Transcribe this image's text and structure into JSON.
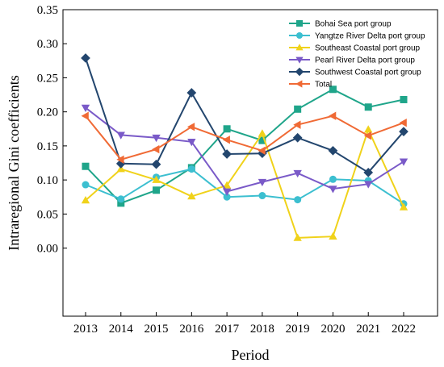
{
  "chart_data": {
    "type": "line",
    "xlabel": "Period",
    "ylabel": "Intraregional Gini coefficients",
    "ylim": [
      -0.1,
      0.35
    ],
    "yticks": [
      0.0,
      0.05,
      0.1,
      0.15,
      0.2,
      0.25,
      0.3,
      0.35
    ],
    "ytick_labels": [
      "0.00",
      "0.05",
      "0.10",
      "0.15",
      "0.20",
      "0.25",
      "0.30",
      "0.35"
    ],
    "categories": [
      "2013",
      "2014",
      "2015",
      "2016",
      "2017",
      "2018",
      "2019",
      "2020",
      "2021",
      "2022"
    ],
    "legend_position": "top-right",
    "grid": false,
    "series": [
      {
        "name": "Bohai Sea port group",
        "color": "#1fa58a",
        "marker": "square",
        "values": [
          0.12,
          0.066,
          0.085,
          0.118,
          0.175,
          0.158,
          0.204,
          0.233,
          0.207,
          0.218
        ]
      },
      {
        "name": "Yangtze River Delta port group",
        "color": "#3cbfd0",
        "marker": "circle",
        "values": [
          0.093,
          0.072,
          0.104,
          0.116,
          0.075,
          0.077,
          0.071,
          0.101,
          0.099,
          0.065
        ]
      },
      {
        "name": "Southeast Coastal port group",
        "color": "#f0d21a",
        "marker": "triangle-up",
        "values": [
          0.07,
          0.116,
          0.1,
          0.076,
          0.092,
          0.168,
          0.015,
          0.017,
          0.174,
          0.06
        ]
      },
      {
        "name": "Pearl River Delta port group",
        "color": "#7a5ac8",
        "marker": "triangle-down",
        "values": [
          0.206,
          0.166,
          0.162,
          0.156,
          0.083,
          0.097,
          0.11,
          0.087,
          0.094,
          0.127
        ]
      },
      {
        "name": "Southwest Coastal port group",
        "color": "#23466e",
        "marker": "diamond",
        "values": [
          0.279,
          0.124,
          0.123,
          0.228,
          0.138,
          0.139,
          0.162,
          0.143,
          0.111,
          0.171
        ]
      },
      {
        "name": "Total",
        "color": "#f06a35",
        "marker": "triangle-left",
        "values": [
          0.194,
          0.13,
          0.145,
          0.178,
          0.159,
          0.143,
          0.181,
          0.194,
          0.165,
          0.184
        ]
      }
    ]
  }
}
